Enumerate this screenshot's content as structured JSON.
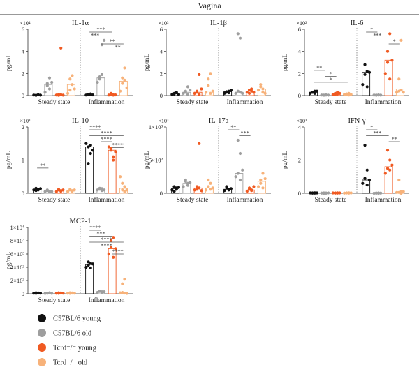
{
  "figure_title": "Vagina",
  "colors": {
    "young_b6": "#111111",
    "old_b6": "#9e9e9e",
    "young_tcrd": "#f05a22",
    "old_tcrd": "#f7b27a"
  },
  "legend": {
    "items": [
      {
        "label": "C57BL/6 young",
        "color": "#111111"
      },
      {
        "label": "C57BL/6 old",
        "color": "#9e9e9e"
      },
      {
        "label": "Tcrd⁻/⁻ young",
        "color": "#f05a22"
      },
      {
        "label": "Tcrd⁻/⁻ old",
        "color": "#f7b27a"
      }
    ]
  },
  "chart_data": [
    {
      "type": "bar",
      "title": "IL-1α",
      "ylabel": "pg/mL",
      "multiplier": "×10⁴",
      "ylim": [
        0,
        6
      ],
      "yticks": [
        "0",
        "2",
        "4",
        "6"
      ],
      "categories": [
        "Steady state",
        "Inflammation"
      ],
      "series": [
        {
          "name": "C57BL/6 young",
          "values": [
            0.05,
            0.1
          ],
          "points": [
            [
              0.05,
              0.03,
              0.08,
              0.02,
              0.06,
              0.04
            ],
            [
              0.05,
              0.12,
              0.08,
              0.1,
              0.15,
              0.06
            ]
          ]
        },
        {
          "name": "C57BL/6 old",
          "values": [
            1.0,
            1.6
          ],
          "points": [
            [
              0.3,
              0.9,
              0.6,
              1.1,
              1.6,
              1.2
            ],
            [
              1.2,
              1.5,
              4.6,
              1.7,
              1.9,
              5.0
            ]
          ]
        },
        {
          "name": "Tcrd⁻/⁻ young",
          "values": [
            0.05,
            0.1
          ],
          "points": [
            [
              0.05,
              0.1,
              4.3,
              0.02,
              0.08,
              0.04
            ],
            [
              0.05,
              0.1,
              0.08,
              0.2,
              0.04,
              0.06
            ]
          ]
        },
        {
          "name": "Tcrd⁻/⁻ old",
          "values": [
            1.0,
            1.3
          ],
          "points": [
            [
              0.2,
              0.5,
              1.0,
              1.5,
              1.8,
              0.6
            ],
            [
              0.4,
              1.1,
              1.4,
              1.6,
              2.5,
              0.7
            ]
          ]
        }
      ],
      "significance": [
        {
          "label": "***",
          "i": 0,
          "j": 2
        },
        {
          "label": "***",
          "i": 0,
          "j": 1
        },
        {
          "label": "**",
          "i": 1,
          "j": 3
        },
        {
          "label": "**",
          "i": 2,
          "j": 3
        }
      ]
    },
    {
      "type": "bar",
      "title": "IL-1β",
      "ylabel": "pg/mL",
      "multiplier": "×10³",
      "ylim": [
        0,
        6
      ],
      "yticks": [
        "0",
        "2",
        "4",
        "6"
      ],
      "categories": [
        "Steady state",
        "Inflammation"
      ],
      "series": [
        {
          "name": "C57BL/6 young",
          "values": [
            0.2,
            0.35
          ],
          "points": [
            [
              0.1,
              0.2,
              0.3,
              0.15,
              0.25,
              0.1
            ],
            [
              0.2,
              0.3,
              0.4,
              0.35,
              0.25,
              0.5
            ]
          ]
        },
        {
          "name": "C57BL/6 old",
          "values": [
            0.3,
            0.3
          ],
          "points": [
            [
              0.2,
              0.4,
              0.8,
              0.3,
              0.1,
              0.5
            ],
            [
              0.2,
              0.4,
              5.2,
              5.6,
              0.3,
              0.2
            ]
          ]
        },
        {
          "name": "Tcrd⁻/⁻ young",
          "values": [
            0.3,
            0.4
          ],
          "points": [
            [
              0.2,
              0.4,
              1.9,
              0.3,
              0.1,
              0.6
            ],
            [
              0.3,
              0.5,
              0.4,
              0.2,
              0.6,
              0.3
            ]
          ]
        },
        {
          "name": "Tcrd⁻/⁻ old",
          "values": [
            0.4,
            0.6
          ],
          "points": [
            [
              0.3,
              0.9,
              2.0,
              1.5,
              0.2,
              0.4
            ],
            [
              0.5,
              1.0,
              0.3,
              0.8,
              0.6,
              0.2
            ]
          ]
        }
      ],
      "significance": []
    },
    {
      "type": "bar",
      "title": "IL-6",
      "ylabel": "pg/mL",
      "multiplier": "×10²",
      "ylim": [
        0,
        6
      ],
      "yticks": [
        "0",
        "2",
        "4",
        "6"
      ],
      "categories": [
        "Steady state",
        "Inflammation"
      ],
      "series": [
        {
          "name": "C57BL/6 young",
          "values": [
            0.3,
            2.1
          ],
          "points": [
            [
              0.2,
              0.3,
              0.4,
              0.3,
              0.2,
              0.4
            ],
            [
              1.0,
              1.9,
              2.2,
              2.8,
              0.8,
              2.1
            ]
          ]
        },
        {
          "name": "C57BL/6 old",
          "values": [
            0.05,
            0.05
          ],
          "points": [
            [
              0.05,
              0.04,
              0.06,
              0.03,
              0.05,
              0.04
            ],
            [
              0.05,
              0.04,
              0.06,
              0.03,
              0.05,
              0.04
            ]
          ]
        },
        {
          "name": "Tcrd⁻/⁻ young",
          "values": [
            0.15,
            3.2
          ],
          "points": [
            [
              0.1,
              0.2,
              0.15,
              0.1,
              0.3,
              0.2
            ],
            [
              2.0,
              3.0,
              5.6,
              4.0,
              1.5,
              3.2
            ]
          ]
        },
        {
          "name": "Tcrd⁻/⁻ old",
          "values": [
            0.1,
            0.6
          ],
          "points": [
            [
              0.1,
              0.15,
              0.2,
              0.1,
              0.05,
              0.1
            ],
            [
              0.3,
              0.4,
              5.0,
              1.5,
              0.5,
              0.3
            ]
          ]
        }
      ],
      "significance": [
        {
          "label": "**",
          "i": 0,
          "j": 1,
          "group": 0
        },
        {
          "label": "*",
          "i": 1,
          "j": 2,
          "group": 0
        },
        {
          "label": "*",
          "i": 0,
          "j": 3,
          "group": 0
        },
        {
          "label": "*",
          "i": 0,
          "j": 1
        },
        {
          "label": "***",
          "i": 0,
          "j": 2
        },
        {
          "label": "*",
          "i": 2,
          "j": 3
        }
      ]
    },
    {
      "type": "bar",
      "title": "IL-10",
      "ylabel": "pg/mL",
      "multiplier": "×10³",
      "ylim": [
        0,
        2
      ],
      "yticks": [
        "0",
        "1",
        "2"
      ],
      "categories": [
        "Steady state",
        "Inflammation"
      ],
      "series": [
        {
          "name": "C57BL/6 young",
          "values": [
            0.12,
            1.4
          ],
          "points": [
            [
              0.1,
              0.15,
              0.12,
              0.08,
              0.1,
              0.14
            ],
            [
              1.5,
              1.4,
              1.2,
              0.9,
              1.45,
              1.3
            ]
          ]
        },
        {
          "name": "C57BL/6 old",
          "values": [
            0.06,
            0.12
          ],
          "points": [
            [
              0.05,
              0.08,
              0.04,
              0.1,
              0.06,
              0.05
            ],
            [
              0.1,
              0.15,
              0.08,
              0.12,
              0.14,
              0.1
            ]
          ]
        },
        {
          "name": "Tcrd⁻/⁻ young",
          "values": [
            0.08,
            1.3
          ],
          "points": [
            [
              0.05,
              0.1,
              0.08,
              0.12,
              0.06,
              0.1
            ],
            [
              1.4,
              1.3,
              1.0,
              1.35,
              1.1,
              1.25
            ]
          ]
        },
        {
          "name": "Tcrd⁻/⁻ old",
          "values": [
            0.08,
            0.15
          ],
          "points": [
            [
              0.05,
              0.1,
              0.06,
              0.12,
              0.08,
              0.1
            ],
            [
              0.5,
              0.1,
              0.2,
              0.3,
              0.05,
              0.1
            ]
          ]
        }
      ],
      "significance": [
        {
          "label": "**",
          "i": 0,
          "j": 1,
          "group": 0
        },
        {
          "label": "****",
          "i": 0,
          "j": 1
        },
        {
          "label": "****",
          "i": 0,
          "j": 3
        },
        {
          "label": "****",
          "i": 1,
          "j": 2
        },
        {
          "label": "****",
          "i": 2,
          "j": 3
        }
      ]
    },
    {
      "type": "bar",
      "title": "IL-17a",
      "ylabel": "pg/mL",
      "multiplier": "×10³",
      "ylim": [
        0,
        1
      ],
      "yticks": [
        "0",
        "5×10²",
        "1×10³"
      ],
      "categories": [
        "Steady state",
        "Inflammation"
      ],
      "series": [
        {
          "name": "C57BL/6 young",
          "values": [
            0.07,
            0.06
          ],
          "points": [
            [
              0.05,
              0.1,
              0.08,
              0.03,
              0.06,
              0.09
            ],
            [
              0.04,
              0.08,
              0.06,
              0.1,
              0.05,
              0.07
            ]
          ]
        },
        {
          "name": "C57BL/6 old",
          "values": [
            0.15,
            0.3
          ],
          "points": [
            [
              0.1,
              0.2,
              0.15,
              0.18,
              0.12,
              0.16
            ],
            [
              0.25,
              0.3,
              0.6,
              0.8,
              0.2,
              0.35
            ]
          ]
        },
        {
          "name": "Tcrd⁻/⁻ young",
          "values": [
            0.08,
            0.05
          ],
          "points": [
            [
              0.05,
              0.1,
              0.75,
              0.06,
              0.08,
              0.04
            ],
            [
              0.03,
              0.06,
              0.05,
              0.08,
              0.04,
              0.1
            ]
          ]
        },
        {
          "name": "Tcrd⁻/⁻ old",
          "values": [
            0.08,
            0.18
          ],
          "points": [
            [
              0.05,
              0.1,
              0.15,
              0.2,
              0.06,
              0.08
            ],
            [
              0.1,
              0.2,
              0.3,
              0.15,
              0.08,
              0.22
            ]
          ]
        }
      ],
      "significance": [
        {
          "label": "**",
          "i": 0,
          "j": 1
        },
        {
          "label": "***",
          "i": 1,
          "j": 2
        }
      ]
    },
    {
      "type": "bar",
      "title": "IFN-γ",
      "ylabel": "pg/mL",
      "multiplier": "×10³",
      "ylim": [
        0,
        4
      ],
      "yticks": [
        "0",
        "2",
        "4"
      ],
      "categories": [
        "Steady state",
        "Inflammation"
      ],
      "series": [
        {
          "name": "C57BL/6 young",
          "values": [
            0.02,
            0.8
          ],
          "points": [
            [
              0.02,
              0.01,
              0.03,
              0.02,
              0.01,
              0.02
            ],
            [
              0.6,
              0.9,
              1.4,
              2.9,
              0.5,
              0.8
            ]
          ]
        },
        {
          "name": "C57BL/6 old",
          "values": [
            0.01,
            0.01
          ],
          "points": [
            [
              0.01,
              0.02,
              0.01,
              0.0,
              0.01,
              0.02
            ],
            [
              0.0,
              0.01,
              0.02,
              0.01,
              0.0,
              0.01
            ]
          ]
        },
        {
          "name": "Tcrd⁻/⁻ young",
          "values": [
            0.02,
            1.6
          ],
          "points": [
            [
              0.02,
              0.01,
              0.03,
              0.02,
              0.01,
              0.02
            ],
            [
              1.2,
              1.5,
              2.0,
              2.6,
              1.4,
              1.7
            ]
          ]
        },
        {
          "name": "Tcrd⁻/⁻ old",
          "values": [
            0.02,
            0.1
          ],
          "points": [
            [
              0.01,
              0.02,
              0.03,
              0.02,
              0.01,
              0.02
            ],
            [
              0.05,
              0.8,
              0.1,
              0.05,
              0.0,
              0.1
            ]
          ]
        }
      ],
      "significance": [
        {
          "label": "*",
          "i": 0,
          "j": 1
        },
        {
          "label": "***",
          "i": 0,
          "j": 2
        },
        {
          "label": "**",
          "i": 2,
          "j": 3
        }
      ]
    },
    {
      "type": "bar",
      "title": "MCP-1",
      "ylabel": "pg/mL",
      "multiplier": "",
      "ylim": [
        0,
        10000
      ],
      "yticks": [
        "0",
        "2×10³",
        "4×10³",
        "6×10³",
        "8×10³",
        "1×10⁴"
      ],
      "categories": [
        "Steady state",
        "Inflammation"
      ],
      "series": [
        {
          "name": "C57BL/6 young",
          "values": [
            100,
            4400
          ],
          "points": [
            [
              80,
              150,
              100,
              60,
              120,
              90
            ],
            [
              4000,
              4300,
              4600,
              4800,
              3900,
              4500
            ]
          ]
        },
        {
          "name": "C57BL/6 old",
          "values": [
            100,
            300
          ],
          "points": [
            [
              50,
              100,
              150,
              80,
              120,
              60
            ],
            [
              200,
              400,
              300,
              350,
              250,
              300
            ]
          ]
        },
        {
          "name": "Tcrd⁻/⁻ young",
          "values": [
            120,
            6800
          ],
          "points": [
            [
              80,
              150,
              100,
              60,
              120,
              90
            ],
            [
              6000,
              7000,
              8500,
              8000,
              5500,
              6800
            ]
          ]
        },
        {
          "name": "Tcrd⁻/⁻ old",
          "values": [
            120,
            200
          ],
          "points": [
            [
              80,
              150,
              100,
              60,
              120,
              90
            ],
            [
              150,
              1500,
              2200,
              200,
              100,
              50
            ]
          ]
        }
      ],
      "significance": [
        {
          "label": "****",
          "i": 0,
          "j": 1
        },
        {
          "label": "***",
          "i": 0,
          "j": 2
        },
        {
          "label": "****",
          "i": 0,
          "j": 3
        },
        {
          "label": "****",
          "i": 1,
          "j": 2
        },
        {
          "label": "****",
          "i": 2,
          "j": 3
        }
      ]
    }
  ]
}
